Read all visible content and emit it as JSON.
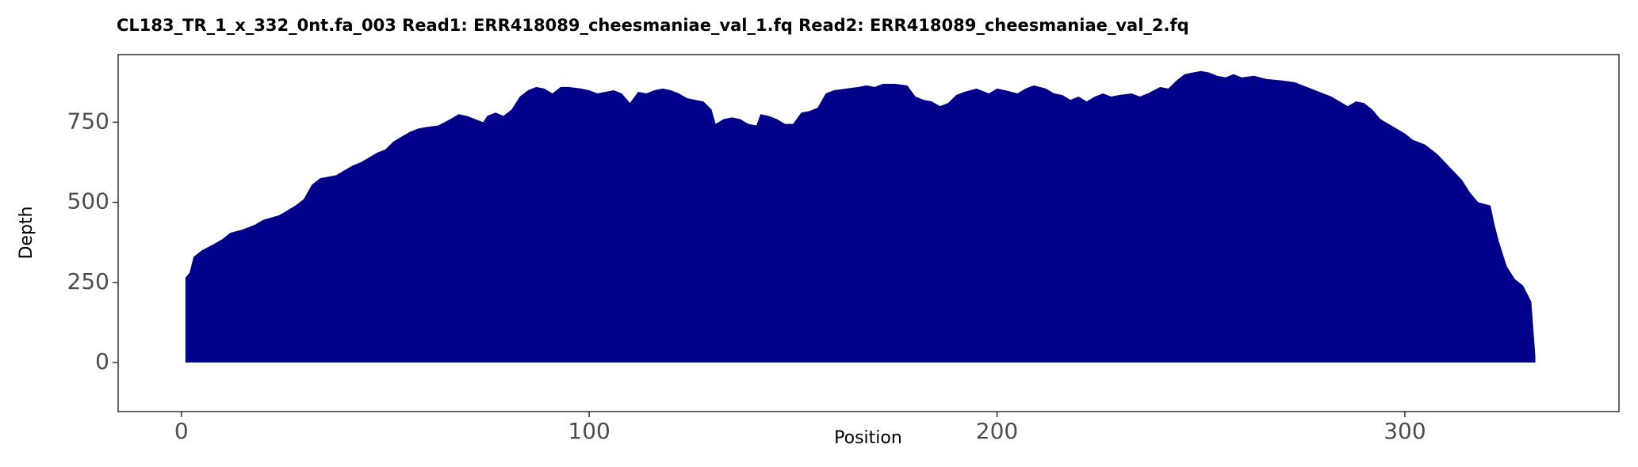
{
  "chart_data": {
    "type": "area",
    "title": "CL183_TR_1_x_332_0nt.fa_003   Read1: ERR418089_cheesmaniae_val_1.fq   Read2: ERR418089_cheesmaniae_val_2.fq",
    "x_label": "Position",
    "y_label": "Depth",
    "color": "#00008b",
    "x": [
      1,
      2,
      3,
      5,
      8,
      10,
      12,
      15,
      18,
      20,
      24,
      26,
      28,
      30,
      32,
      34,
      36,
      38,
      40,
      42,
      44,
      46,
      48,
      50,
      52,
      54,
      56,
      58,
      60,
      63,
      66,
      68,
      70,
      72,
      74,
      75,
      77,
      79,
      81,
      83,
      85,
      87,
      89,
      91,
      93,
      95,
      98,
      100,
      102,
      104,
      106,
      108,
      110,
      112,
      114,
      116,
      118,
      120,
      122,
      124,
      126,
      128,
      130,
      131,
      133,
      135,
      137,
      139,
      141,
      142,
      144,
      146,
      148,
      150,
      152,
      154,
      156,
      158,
      160,
      163,
      166,
      168,
      170,
      172,
      175,
      178,
      180,
      182,
      184,
      186,
      188,
      190,
      192,
      195,
      198,
      200,
      202,
      205,
      207,
      209,
      212,
      214,
      216,
      218,
      220,
      222,
      224,
      226,
      228,
      230,
      233,
      235,
      237,
      240,
      242,
      244,
      246,
      248,
      250,
      252,
      254,
      256,
      258,
      260,
      263,
      266,
      270,
      273,
      276,
      279,
      282,
      284,
      286,
      288,
      290,
      292,
      294,
      296,
      298,
      300,
      302,
      305,
      308,
      311,
      314,
      316,
      318,
      321,
      322,
      323,
      325,
      327,
      329,
      331,
      332
    ],
    "values": [
      265,
      280,
      330,
      350,
      370,
      385,
      405,
      415,
      430,
      445,
      460,
      475,
      490,
      510,
      555,
      575,
      580,
      585,
      600,
      615,
      625,
      640,
      655,
      665,
      690,
      705,
      720,
      730,
      735,
      740,
      760,
      775,
      770,
      760,
      750,
      770,
      780,
      770,
      790,
      830,
      850,
      860,
      855,
      840,
      860,
      860,
      855,
      850,
      840,
      845,
      850,
      840,
      810,
      845,
      840,
      850,
      855,
      850,
      840,
      825,
      820,
      815,
      790,
      745,
      760,
      765,
      760,
      745,
      740,
      775,
      770,
      760,
      745,
      745,
      780,
      785,
      795,
      840,
      850,
      855,
      860,
      865,
      860,
      870,
      870,
      865,
      830,
      820,
      815,
      800,
      810,
      835,
      845,
      855,
      840,
      855,
      850,
      840,
      855,
      865,
      855,
      840,
      835,
      820,
      830,
      815,
      830,
      840,
      830,
      835,
      840,
      830,
      840,
      860,
      855,
      880,
      900,
      905,
      910,
      905,
      895,
      890,
      900,
      890,
      895,
      885,
      880,
      875,
      860,
      845,
      830,
      815,
      800,
      815,
      810,
      790,
      760,
      745,
      730,
      715,
      695,
      680,
      650,
      610,
      570,
      530,
      500,
      490,
      430,
      380,
      300,
      260,
      240,
      190,
      20
    ],
    "xlim": [
      -15.5,
      352.5
    ],
    "ylim": [
      -153,
      961
    ],
    "xticks": [
      0,
      100,
      200,
      300
    ],
    "yticks": [
      0,
      250,
      500,
      750
    ]
  }
}
